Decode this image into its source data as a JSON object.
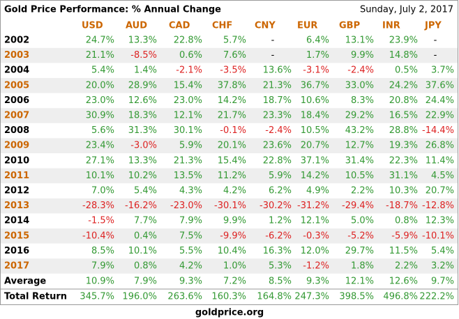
{
  "header": {
    "title": "Gold Price Performance: % Annual Change",
    "date": "Sunday, July 2, 2017"
  },
  "table": {
    "columns": [
      "USD",
      "AUD",
      "CAD",
      "CHF",
      "CNY",
      "EUR",
      "GBP",
      "INR",
      "JPY"
    ],
    "rows": [
      [
        "2002",
        "24.7%",
        "13.3%",
        "22.8%",
        "5.7%",
        "-",
        "6.4%",
        "13.1%",
        "23.9%",
        "-"
      ],
      [
        "2003",
        "21.1%",
        "-8.5%",
        "0.6%",
        "7.6%",
        "-",
        "1.7%",
        "9.9%",
        "14.8%",
        "-"
      ],
      [
        "2004",
        "5.4%",
        "1.4%",
        "-2.1%",
        "-3.5%",
        "13.6%",
        "-3.1%",
        "-2.4%",
        "0.5%",
        "3.7%"
      ],
      [
        "2005",
        "20.0%",
        "28.9%",
        "15.4%",
        "37.8%",
        "21.3%",
        "36.7%",
        "33.0%",
        "24.2%",
        "37.6%"
      ],
      [
        "2006",
        "23.0%",
        "12.6%",
        "23.0%",
        "14.2%",
        "18.7%",
        "10.6%",
        "8.3%",
        "20.8%",
        "24.4%"
      ],
      [
        "2007",
        "30.9%",
        "18.3%",
        "12.1%",
        "21.7%",
        "23.3%",
        "18.4%",
        "29.2%",
        "16.5%",
        "22.9%"
      ],
      [
        "2008",
        "5.6%",
        "31.3%",
        "30.1%",
        "-0.1%",
        "-2.4%",
        "10.5%",
        "43.2%",
        "28.8%",
        "-14.4%"
      ],
      [
        "2009",
        "23.4%",
        "-3.0%",
        "5.9%",
        "20.1%",
        "23.6%",
        "20.7%",
        "12.7%",
        "19.3%",
        "26.8%"
      ],
      [
        "2010",
        "27.1%",
        "13.3%",
        "21.3%",
        "15.4%",
        "22.8%",
        "37.1%",
        "31.4%",
        "22.3%",
        "11.4%"
      ],
      [
        "2011",
        "10.1%",
        "10.2%",
        "13.5%",
        "11.2%",
        "5.9%",
        "14.2%",
        "10.5%",
        "31.1%",
        "4.5%"
      ],
      [
        "2012",
        "7.0%",
        "5.4%",
        "4.3%",
        "4.2%",
        "6.2%",
        "4.9%",
        "2.2%",
        "10.3%",
        "20.7%"
      ],
      [
        "2013",
        "-28.3%",
        "-16.2%",
        "-23.0%",
        "-30.1%",
        "-30.2%",
        "-31.2%",
        "-29.4%",
        "-18.7%",
        "-12.8%"
      ],
      [
        "2014",
        "-1.5%",
        "7.7%",
        "7.9%",
        "9.9%",
        "1.2%",
        "12.1%",
        "5.0%",
        "0.8%",
        "12.3%"
      ],
      [
        "2015",
        "-10.4%",
        "0.4%",
        "7.5%",
        "-9.9%",
        "-6.2%",
        "-0.3%",
        "-5.2%",
        "-5.9%",
        "-10.1%"
      ],
      [
        "2016",
        "8.5%",
        "10.1%",
        "5.5%",
        "10.4%",
        "16.3%",
        "12.0%",
        "29.7%",
        "11.5%",
        "5.4%"
      ],
      [
        "2017",
        "7.9%",
        "0.8%",
        "4.2%",
        "1.0%",
        "5.3%",
        "-1.2%",
        "1.8%",
        "2.2%",
        "3.2%"
      ],
      [
        "Average",
        "10.9%",
        "7.9%",
        "9.3%",
        "7.2%",
        "8.5%",
        "9.3%",
        "12.1%",
        "12.6%",
        "9.7%"
      ],
      [
        "Total Return",
        "345.7%",
        "196.0%",
        "263.6%",
        "160.3%",
        "164.8%",
        "247.3%",
        "398.5%",
        "496.8%",
        "222.2%"
      ]
    ]
  },
  "footer": "goldprice.org"
}
